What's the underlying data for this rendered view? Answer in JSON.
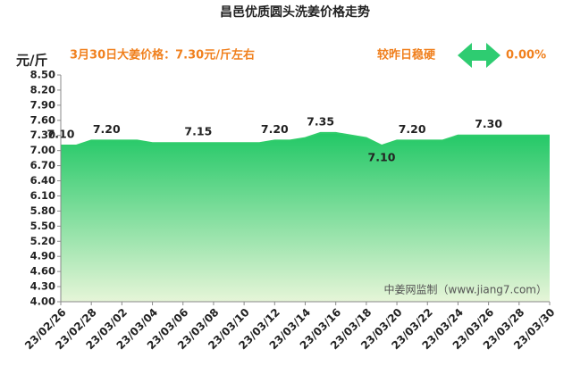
{
  "chart_data": {
    "type": "area",
    "title": "昌邑优质圆头洗姜价格走势",
    "y_label": "元/斤",
    "annotations": [
      "3月30日大姜价格：7.30元/斤左右",
      "较昨日稳硬",
      "0.00%"
    ],
    "watermark": "中姜网监制（www.jiang7.com）",
    "color": "#2fcc6a",
    "categories": [
      "23/02/26",
      null,
      "23/02/28",
      null,
      "23/03/02",
      null,
      "23/03/04",
      null,
      "23/03/06",
      null,
      "23/03/08",
      null,
      "23/03/10",
      null,
      "23/03/12",
      null,
      "23/03/14",
      null,
      "23/03/16",
      null,
      "23/03/18",
      null,
      "23/03/20",
      null,
      "23/03/22",
      null,
      "23/03/24",
      null,
      "23/03/26",
      null,
      "23/03/28",
      null,
      "23/03/30"
    ],
    "values": [
      7.1,
      7.1,
      7.2,
      7.2,
      7.2,
      7.2,
      7.15,
      7.15,
      7.15,
      7.15,
      7.15,
      7.15,
      7.15,
      7.15,
      7.2,
      7.2,
      7.25,
      7.35,
      7.35,
      7.3,
      7.25,
      7.1,
      7.2,
      7.2,
      7.2,
      7.2,
      7.3,
      7.3,
      7.3,
      7.3,
      7.3,
      7.3,
      7.3
    ],
    "value_labels": [
      "7.10",
      null,
      null,
      "7.20",
      null,
      null,
      null,
      null,
      null,
      "7.15",
      null,
      null,
      null,
      null,
      "7.20",
      null,
      null,
      "7.35",
      null,
      null,
      null,
      "7.10",
      null,
      "7.20",
      null,
      null,
      null,
      null,
      "7.30",
      null,
      null,
      null,
      null
    ],
    "ylim": [
      4.0,
      8.5
    ],
    "yticks": [
      {
        "value": 4.0,
        "label": "4.00"
      },
      {
        "value": 4.3,
        "label": "4.30"
      },
      {
        "value": 4.6,
        "label": "4.60"
      },
      {
        "value": 4.9,
        "label": "4.90"
      },
      {
        "value": 5.2,
        "label": "5.20"
      },
      {
        "value": 5.5,
        "label": "5.50"
      },
      {
        "value": 5.8,
        "label": "5.80"
      },
      {
        "value": 6.1,
        "label": "6.10"
      },
      {
        "value": 6.4,
        "label": "6.40"
      },
      {
        "value": 6.7,
        "label": "6.70"
      },
      {
        "value": 7.0,
        "label": "7.00"
      },
      {
        "value": 7.3,
        "label": "7.30"
      },
      {
        "value": 7.6,
        "label": "7.60"
      },
      {
        "value": 7.9,
        "label": "7.90"
      },
      {
        "value": 8.2,
        "label": "8.20"
      },
      {
        "value": 8.5,
        "label": "8.50"
      }
    ],
    "grid": false
  }
}
